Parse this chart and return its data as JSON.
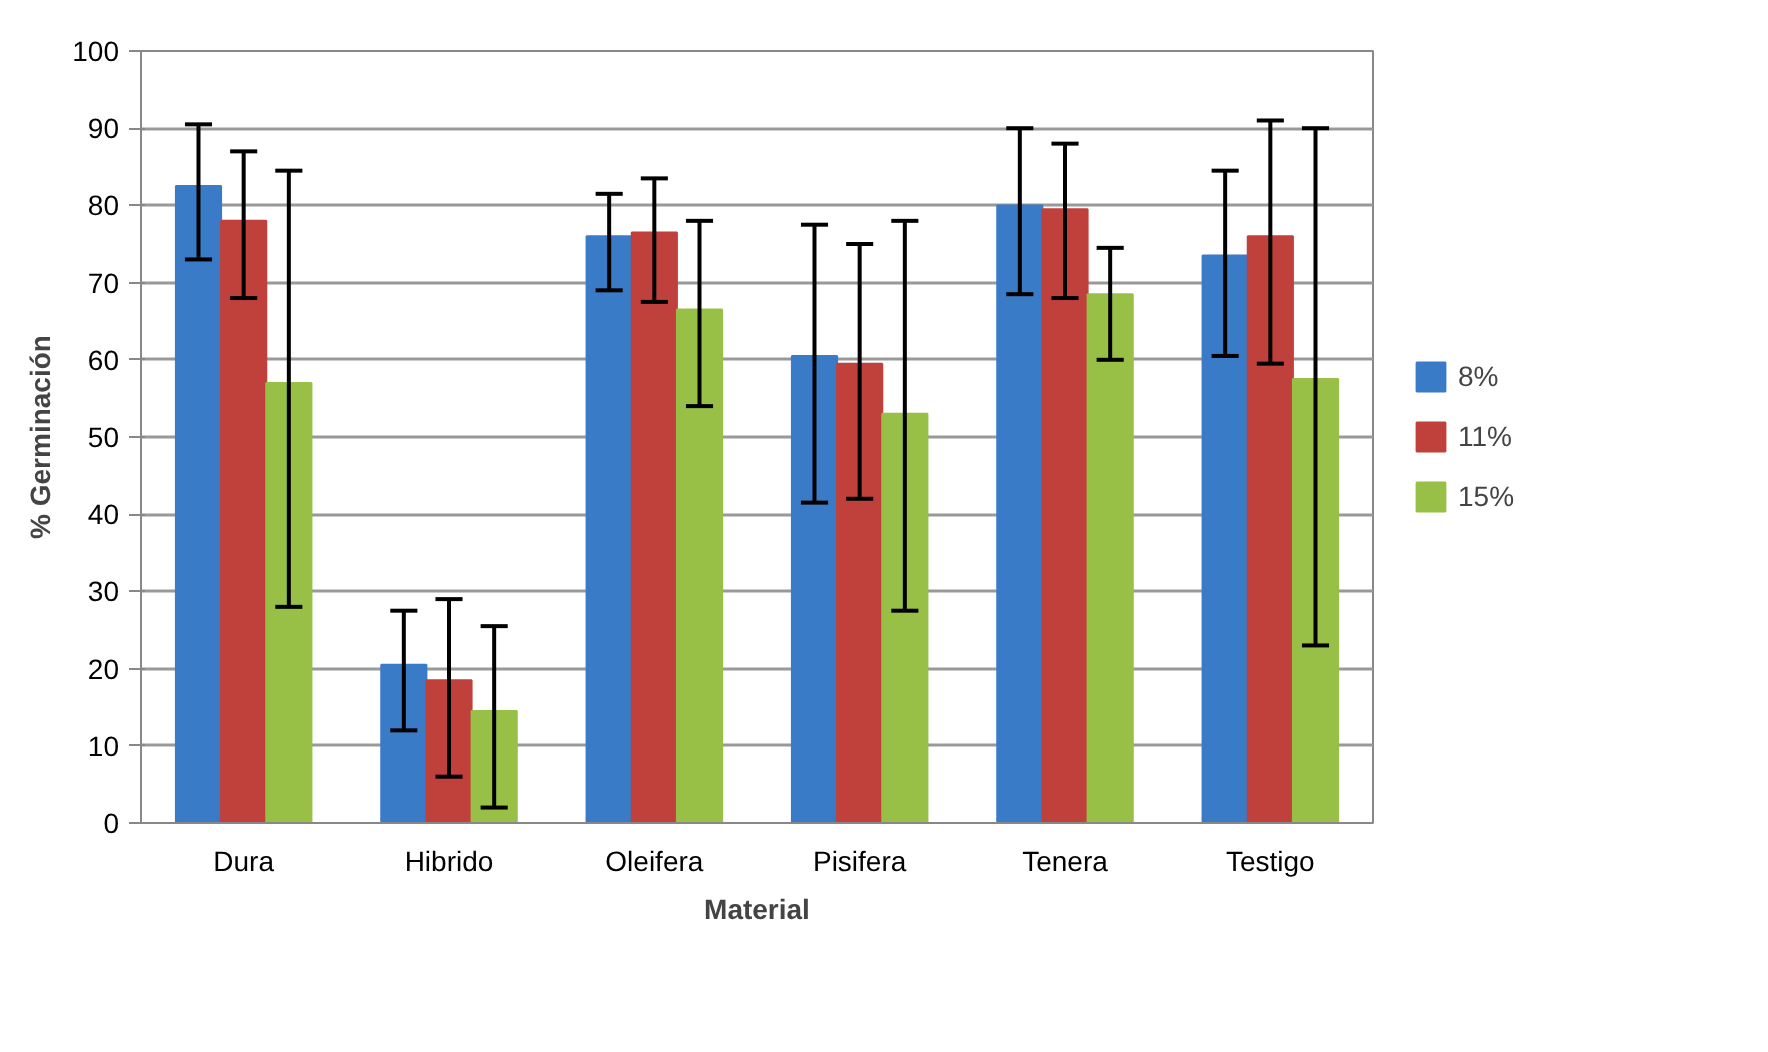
{
  "chart_data": {
    "type": "bar",
    "xlabel": "Material",
    "ylabel": "% Germinación",
    "categories": [
      "Dura",
      "Hibrido",
      "Oleifera",
      "Pisifera",
      "Tenera",
      "Testigo"
    ],
    "series": [
      {
        "name": "8%",
        "color": "#3a7bc8",
        "values": [
          82.5,
          20.5,
          76,
          60.5,
          80,
          73.5
        ],
        "errors": [
          [
            73,
            90.5
          ],
          [
            12,
            27.5
          ],
          [
            69,
            81.5
          ],
          [
            41.5,
            77.5
          ],
          [
            68.5,
            90
          ],
          [
            60.5,
            84.5
          ]
        ]
      },
      {
        "name": "11%",
        "color": "#c0403c",
        "values": [
          78,
          18.5,
          76.5,
          59.5,
          79.5,
          76
        ],
        "errors": [
          [
            68,
            87
          ],
          [
            6,
            29
          ],
          [
            67.5,
            83.5
          ],
          [
            42,
            75
          ],
          [
            68,
            88
          ],
          [
            59.5,
            91
          ]
        ]
      },
      {
        "name": "15%",
        "color": "#98c046",
        "values": [
          57,
          14.5,
          66.5,
          53,
          68.5,
          57.5
        ],
        "errors": [
          [
            28,
            84.5
          ],
          [
            2,
            25.5
          ],
          [
            54,
            78
          ],
          [
            27.5,
            78
          ],
          [
            60,
            74.5
          ],
          [
            23,
            90
          ]
        ]
      }
    ],
    "ylim": [
      0,
      100
    ],
    "yticks": [
      0,
      10,
      20,
      30,
      40,
      50,
      60,
      70,
      80,
      90,
      100
    ],
    "grid": "y",
    "legend": "right"
  }
}
